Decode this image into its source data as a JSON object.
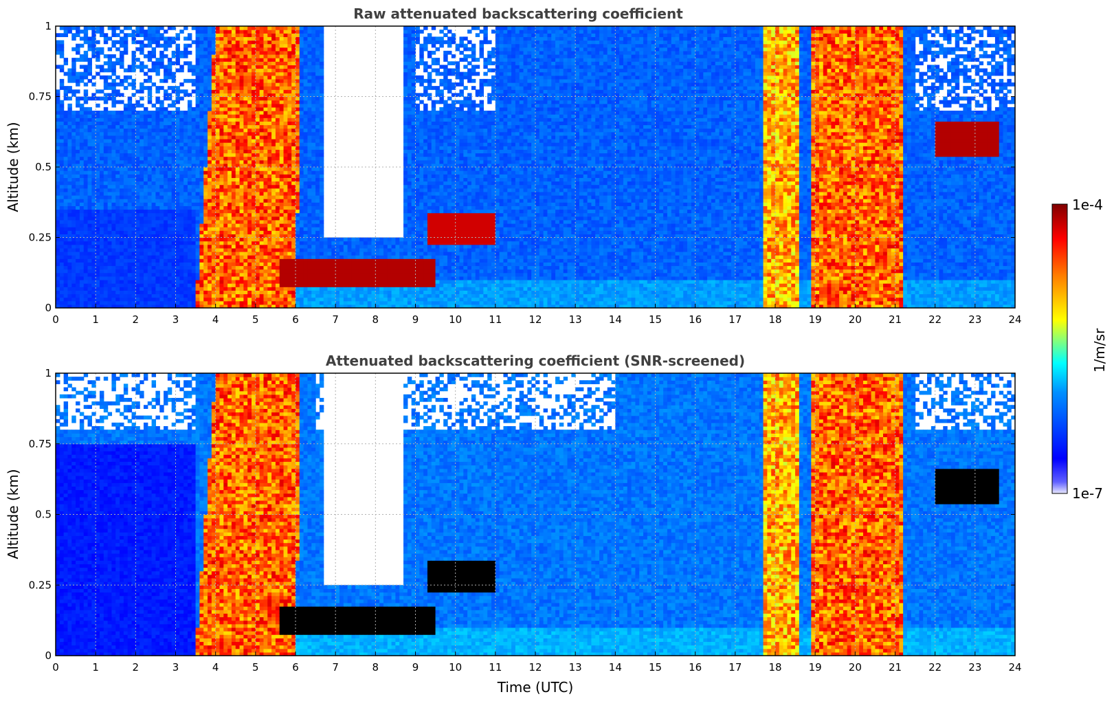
{
  "chart_data": [
    {
      "type": "heatmap",
      "title": "Raw attenuated backscattering coefficient",
      "ylabel": "Altitude (km)",
      "xlabel": "",
      "xlim": [
        0,
        24
      ],
      "ylim": [
        0,
        1
      ],
      "x_ticks": [
        "0",
        "1",
        "2",
        "3",
        "4",
        "5",
        "6",
        "7",
        "8",
        "9",
        "10",
        "11",
        "12",
        "13",
        "14",
        "15",
        "16",
        "17",
        "18",
        "19",
        "20",
        "21",
        "22",
        "23",
        "24"
      ],
      "y_ticks": [
        "0",
        "0.25",
        "0.5",
        "0.75",
        "1"
      ],
      "grid": true,
      "features": [
        {
          "kind": "background",
          "level": 0.22
        },
        {
          "kind": "dense_layer",
          "t0": 0,
          "t1": 3.5,
          "alt_top": 0.35,
          "level": 0.18
        },
        {
          "kind": "precipitation",
          "t0": 3.5,
          "t1": 6.0,
          "slant": 0.5,
          "alt_top": 1.0,
          "level": 0.78
        },
        {
          "kind": "cloud_band",
          "t0": 5.6,
          "t1": 9.5,
          "alt": 0.12,
          "thickness": 0.1,
          "level": 0.95
        },
        {
          "kind": "cloud_band",
          "t0": 9.3,
          "t1": 11.0,
          "alt": 0.28,
          "thickness": 0.12,
          "level": 0.92
        },
        {
          "kind": "clear_gap",
          "t0": 6.7,
          "t1": 8.7,
          "alt_bottom": 0.25
        },
        {
          "kind": "precipitation",
          "t0": 17.7,
          "t1": 18.6,
          "slant": 0.0,
          "alt_top": 1.0,
          "level": 0.7
        },
        {
          "kind": "precipitation",
          "t0": 18.9,
          "t1": 21.2,
          "slant": 0.0,
          "alt_top": 1.0,
          "level": 0.78
        },
        {
          "kind": "cloud_band",
          "t0": 22.0,
          "t1": 23.6,
          "alt": 0.6,
          "thickness": 0.12,
          "level": 0.95
        }
      ]
    },
    {
      "type": "heatmap",
      "title": "Attenuated backscattering coefficient (SNR-screened)",
      "ylabel": "Altitude (km)",
      "xlabel": "Time (UTC)",
      "xlim": [
        0,
        24
      ],
      "ylim": [
        0,
        1
      ],
      "x_ticks": [
        "0",
        "1",
        "2",
        "3",
        "4",
        "5",
        "6",
        "7",
        "8",
        "9",
        "10",
        "11",
        "12",
        "13",
        "14",
        "15",
        "16",
        "17",
        "18",
        "19",
        "20",
        "21",
        "22",
        "23",
        "24"
      ],
      "y_ticks": [
        "0",
        "0.25",
        "0.5",
        "0.75",
        "1"
      ],
      "grid": true,
      "features": [
        {
          "kind": "background",
          "level": 0.24
        },
        {
          "kind": "dense_layer",
          "t0": 0,
          "t1": 3.5,
          "alt_top": 0.75,
          "level": 0.15
        },
        {
          "kind": "precipitation",
          "t0": 3.5,
          "t1": 6.0,
          "slant": 0.5,
          "alt_top": 1.0,
          "level": 0.78
        },
        {
          "kind": "cloud_band",
          "t0": 5.6,
          "t1": 9.5,
          "alt": 0.12,
          "thickness": 0.1,
          "level": 1.05
        },
        {
          "kind": "cloud_band",
          "t0": 9.3,
          "t1": 11.0,
          "alt": 0.28,
          "thickness": 0.12,
          "level": 1.05
        },
        {
          "kind": "clear_gap",
          "t0": 6.7,
          "t1": 8.7,
          "alt_bottom": 0.25
        },
        {
          "kind": "precipitation",
          "t0": 17.7,
          "t1": 18.6,
          "slant": 0.0,
          "alt_top": 1.0,
          "level": 0.7
        },
        {
          "kind": "precipitation",
          "t0": 18.9,
          "t1": 21.2,
          "slant": 0.0,
          "alt_top": 1.0,
          "level": 0.78
        },
        {
          "kind": "cloud_band",
          "t0": 22.0,
          "t1": 23.6,
          "alt": 0.6,
          "thickness": 0.12,
          "level": 1.05
        }
      ]
    }
  ],
  "colorbar": {
    "label": "1/m/sr",
    "max_label": "1e-4",
    "min_label": "1e-7",
    "colormap": "jet",
    "stops": [
      "#000080",
      "#0000ff",
      "#0080ff",
      "#00ffff",
      "#80ff80",
      "#ffff00",
      "#ff8000",
      "#ff0000",
      "#800000"
    ]
  }
}
